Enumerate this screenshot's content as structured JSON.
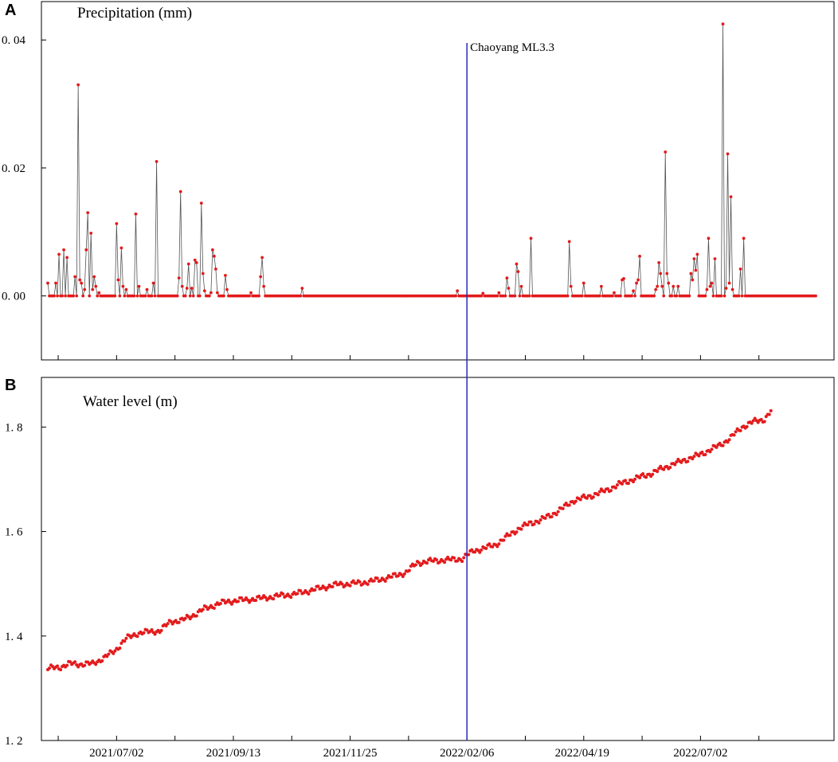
{
  "panel_labels": [
    "A",
    "B"
  ],
  "event": {
    "label": "Chaoyang ML3.3",
    "date": "2022/02/06",
    "color": "#2a2ab8"
  },
  "colors": {
    "point": "#e31a1c",
    "line": "#555555",
    "axis": "#000000"
  },
  "chart_data": [
    {
      "type": "line",
      "title": "Precipitation (mm)",
      "xlabel": "",
      "ylabel": "",
      "ylim": [
        -0.01,
        0.046
      ],
      "yticks": [
        0.0,
        0.02,
        0.04
      ],
      "ytick_labels": [
        "0. 00",
        "0. 02",
        "0. 04"
      ],
      "grid": false,
      "x_start": "2021/05/20",
      "x_end": "2022/09/12",
      "series": [
        {
          "points": [
            [
              "2021/05/20",
              0.002
            ],
            [
              "2021/05/25",
              0.002
            ],
            [
              "2021/05/27",
              0.0065
            ],
            [
              "2021/05/30",
              0.0072
            ],
            [
              "2021/06/01",
              0.006
            ],
            [
              "2021/06/06",
              0.003
            ],
            [
              "2021/06/08",
              0.033
            ],
            [
              "2021/06/09",
              0.0025
            ],
            [
              "2021/06/10",
              0.002
            ],
            [
              "2021/06/12",
              0.001
            ],
            [
              "2021/06/13",
              0.0072
            ],
            [
              "2021/06/14",
              0.013
            ],
            [
              "2021/06/16",
              0.0098
            ],
            [
              "2021/06/17",
              0.001
            ],
            [
              "2021/06/18",
              0.003
            ],
            [
              "2021/06/19",
              0.0015
            ],
            [
              "2021/06/21",
              0.0005
            ],
            [
              "2021/07/02",
              0.0113
            ],
            [
              "2021/07/03",
              0.0025
            ],
            [
              "2021/07/05",
              0.0075
            ],
            [
              "2021/07/06",
              0.0015
            ],
            [
              "2021/07/08",
              0.001
            ],
            [
              "2021/07/14",
              0.0128
            ],
            [
              "2021/07/16",
              0.0015
            ],
            [
              "2021/07/21",
              0.001
            ],
            [
              "2021/07/25",
              0.002
            ],
            [
              "2021/07/27",
              0.021
            ],
            [
              "2021/08/10",
              0.0028
            ],
            [
              "2021/08/11",
              0.0163
            ],
            [
              "2021/08/12",
              0.0015
            ],
            [
              "2021/08/15",
              0.0012
            ],
            [
              "2021/08/16",
              0.005
            ],
            [
              "2021/08/18",
              0.0012
            ],
            [
              "2021/08/20",
              0.0056
            ],
            [
              "2021/08/21",
              0.0052
            ],
            [
              "2021/08/24",
              0.0145
            ],
            [
              "2021/08/25",
              0.0035
            ],
            [
              "2021/08/26",
              0.0008
            ],
            [
              "2021/08/30",
              0.0005
            ],
            [
              "2021/08/31",
              0.0072
            ],
            [
              "2021/09/01",
              0.0062
            ],
            [
              "2021/09/02",
              0.0042
            ],
            [
              "2021/09/03",
              0.0005
            ],
            [
              "2021/09/08",
              0.0032
            ],
            [
              "2021/09/09",
              0.001
            ],
            [
              "2021/09/24",
              0.0005
            ],
            [
              "2021/09/30",
              0.003
            ],
            [
              "2021/10/01",
              0.006
            ],
            [
              "2021/10/02",
              0.0015
            ],
            [
              "2021/10/26",
              0.0012
            ],
            [
              "2022/01/31",
              0.0008
            ],
            [
              "2022/02/16",
              0.0004
            ],
            [
              "2022/02/26",
              0.0005
            ],
            [
              "2022/03/03",
              0.0028
            ],
            [
              "2022/03/04",
              0.0012
            ],
            [
              "2022/03/09",
              0.005
            ],
            [
              "2022/03/10",
              0.0038
            ],
            [
              "2022/03/12",
              0.0015
            ],
            [
              "2022/03/18",
              0.009
            ],
            [
              "2022/04/11",
              0.0085
            ],
            [
              "2022/04/12",
              0.0015
            ],
            [
              "2022/04/20",
              0.002
            ],
            [
              "2022/05/01",
              0.0015
            ],
            [
              "2022/05/09",
              0.0005
            ],
            [
              "2022/05/14",
              0.0025
            ],
            [
              "2022/05/15",
              0.0027
            ],
            [
              "2022/05/21",
              0.0008
            ],
            [
              "2022/05/23",
              0.002
            ],
            [
              "2022/05/24",
              0.0025
            ],
            [
              "2022/05/25",
              0.0062
            ],
            [
              "2022/06/04",
              0.001
            ],
            [
              "2022/06/05",
              0.0015
            ],
            [
              "2022/06/06",
              0.0052
            ],
            [
              "2022/06/07",
              0.0035
            ],
            [
              "2022/06/08",
              0.0015
            ],
            [
              "2022/06/10",
              0.0225
            ],
            [
              "2022/06/11",
              0.0035
            ],
            [
              "2022/06/12",
              0.002
            ],
            [
              "2022/06/15",
              0.0015
            ],
            [
              "2022/06/18",
              0.0015
            ],
            [
              "2022/06/26",
              0.0035
            ],
            [
              "2022/06/27",
              0.0025
            ],
            [
              "2022/06/28",
              0.0058
            ],
            [
              "2022/06/29",
              0.004
            ],
            [
              "2022/06/30",
              0.0065
            ],
            [
              "2022/07/06",
              0.001
            ],
            [
              "2022/07/07",
              0.009
            ],
            [
              "2022/07/08",
              0.0015
            ],
            [
              "2022/07/09",
              0.002
            ],
            [
              "2022/07/11",
              0.0058
            ],
            [
              "2022/07/16",
              0.0425
            ],
            [
              "2022/07/18",
              0.0012
            ],
            [
              "2022/07/19",
              0.0222
            ],
            [
              "2022/07/20",
              0.002
            ],
            [
              "2022/07/21",
              0.0155
            ],
            [
              "2022/07/22",
              0.001
            ],
            [
              "2022/07/27",
              0.0042
            ],
            [
              "2022/07/29",
              0.009
            ]
          ]
        }
      ]
    },
    {
      "type": "scatter",
      "title": "Water level (m)",
      "xlabel": "",
      "ylabel": "",
      "ylim": [
        1.2,
        1.895
      ],
      "yticks": [
        1.2,
        1.4,
        1.6,
        1.8
      ],
      "ytick_labels": [
        "1. 2",
        "1. 4",
        "1. 6",
        "1. 8"
      ],
      "xtick_labels": [
        "2021/07/02",
        "2021/09/13",
        "2021/11/25",
        "2022/02/06",
        "2022/04/19",
        "2022/07/02"
      ],
      "grid": false,
      "series": [
        {
          "points": [
            [
              "2021/05/20",
              1.338
            ],
            [
              "2021/05/27",
              1.34
            ],
            [
              "2021/06/03",
              1.347
            ],
            [
              "2021/06/10",
              1.346
            ],
            [
              "2021/06/17",
              1.347
            ],
            [
              "2021/06/24",
              1.358
            ],
            [
              "2021/07/01",
              1.372
            ],
            [
              "2021/07/08",
              1.395
            ],
            [
              "2021/07/15",
              1.405
            ],
            [
              "2021/07/22",
              1.408
            ],
            [
              "2021/07/29",
              1.41
            ],
            [
              "2021/08/05",
              1.428
            ],
            [
              "2021/08/12",
              1.43
            ],
            [
              "2021/08/19",
              1.44
            ],
            [
              "2021/08/26",
              1.452
            ],
            [
              "2021/09/02",
              1.46
            ],
            [
              "2021/09/09",
              1.466
            ],
            [
              "2021/09/16",
              1.468
            ],
            [
              "2021/09/23",
              1.47
            ],
            [
              "2021/09/30",
              1.472
            ],
            [
              "2021/10/07",
              1.475
            ],
            [
              "2021/10/14",
              1.478
            ],
            [
              "2021/10/21",
              1.48
            ],
            [
              "2021/10/28",
              1.485
            ],
            [
              "2021/11/04",
              1.49
            ],
            [
              "2021/11/11",
              1.495
            ],
            [
              "2021/11/18",
              1.499
            ],
            [
              "2021/11/25",
              1.5
            ],
            [
              "2021/12/02",
              1.502
            ],
            [
              "2021/12/09",
              1.505
            ],
            [
              "2021/12/16",
              1.51
            ],
            [
              "2021/12/23",
              1.515
            ],
            [
              "2021/12/30",
              1.522
            ],
            [
              "2022/01/06",
              1.54
            ],
            [
              "2022/01/13",
              1.543
            ],
            [
              "2022/01/20",
              1.545
            ],
            [
              "2022/01/27",
              1.546
            ],
            [
              "2022/02/03",
              1.548
            ],
            [
              "2022/02/10",
              1.563
            ],
            [
              "2022/02/17",
              1.568
            ],
            [
              "2022/02/24",
              1.575
            ],
            [
              "2022/03/03",
              1.59
            ],
            [
              "2022/03/10",
              1.605
            ],
            [
              "2022/03/17",
              1.615
            ],
            [
              "2022/03/24",
              1.622
            ],
            [
              "2022/03/31",
              1.632
            ],
            [
              "2022/04/07",
              1.645
            ],
            [
              "2022/04/14",
              1.66
            ],
            [
              "2022/04/21",
              1.665
            ],
            [
              "2022/04/28",
              1.672
            ],
            [
              "2022/05/05",
              1.68
            ],
            [
              "2022/05/12",
              1.69
            ],
            [
              "2022/05/19",
              1.698
            ],
            [
              "2022/05/26",
              1.705
            ],
            [
              "2022/06/02",
              1.712
            ],
            [
              "2022/06/09",
              1.722
            ],
            [
              "2022/06/16",
              1.73
            ],
            [
              "2022/06/23",
              1.738
            ],
            [
              "2022/06/30",
              1.745
            ],
            [
              "2022/07/07",
              1.755
            ],
            [
              "2022/07/14",
              1.765
            ],
            [
              "2022/07/21",
              1.78
            ],
            [
              "2022/07/28",
              1.8
            ],
            [
              "2022/08/04",
              1.81
            ],
            [
              "2022/08/11",
              1.815
            ],
            [
              "2022/08/15",
              1.83
            ]
          ]
        }
      ]
    }
  ]
}
